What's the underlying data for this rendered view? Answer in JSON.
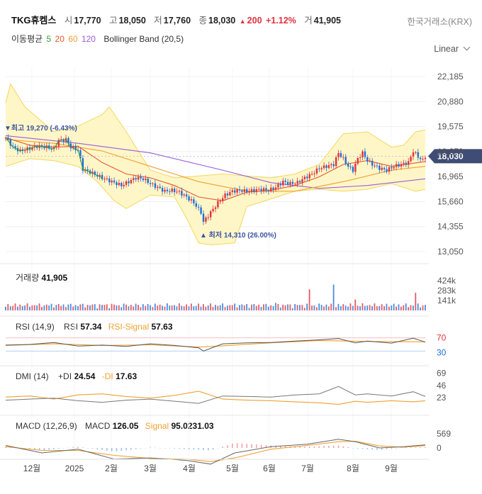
{
  "header": {
    "name": "TKG휴켐스",
    "open_label": "시",
    "open": "17,770",
    "high_label": "고",
    "high": "18,050",
    "low_label": "저",
    "low": "17,760",
    "close_label": "종",
    "close": "18,030",
    "change_arrow": "▲",
    "change": "200",
    "change_pct": "+1.12%",
    "volume_label": "거",
    "volume": "41,905",
    "exchange": "한국거래소(KRX)",
    "scale_mode": "Linear",
    "ma_label": "이동평균",
    "ma5": "5",
    "ma20": "20",
    "ma60": "60",
    "ma120": "120",
    "bb_label": "Bollinger Band (20,5)"
  },
  "colors": {
    "up": "#e0323c",
    "down": "#1e6fd9",
    "ma5": "#2e9e3e",
    "ma20": "#e4572e",
    "ma60": "#f0a030",
    "ma120": "#9a5cd8",
    "bb_fill": "#fff6c8",
    "bb_line": "#f2d85a",
    "price_tag": "#3f4c73"
  },
  "chart_data": [
    {
      "type": "candlestick",
      "panel": "price",
      "ylim": [
        13050,
        22185
      ],
      "y_ticks": [
        "22,185",
        "20,880",
        "19,575",
        "18,270",
        "16,965",
        "15,660",
        "14,355",
        "13,050"
      ],
      "x_ticks": [
        "12월",
        "2025",
        "2월",
        "3월",
        "4월",
        "5월",
        "6월",
        "7월",
        "8월",
        "9월"
      ],
      "last_price": "18,030",
      "high_annotation": "최고 19,270 (-6.43%)",
      "low_annotation": "최저 14,310 (26.00%)",
      "close_series": [
        {
          "x": 0,
          "y": 19000
        },
        {
          "x": 3,
          "y": 18500
        },
        {
          "x": 6,
          "y": 18300
        },
        {
          "x": 9,
          "y": 18400
        },
        {
          "x": 13,
          "y": 18550
        },
        {
          "x": 17,
          "y": 18500
        },
        {
          "x": 20,
          "y": 18400
        },
        {
          "x": 22,
          "y": 18850
        },
        {
          "x": 25,
          "y": 18900
        },
        {
          "x": 27,
          "y": 18500
        },
        {
          "x": 30,
          "y": 18350
        },
        {
          "x": 32,
          "y": 17350
        },
        {
          "x": 35,
          "y": 17200
        },
        {
          "x": 40,
          "y": 16900
        },
        {
          "x": 45,
          "y": 16650
        },
        {
          "x": 48,
          "y": 16500
        },
        {
          "x": 51,
          "y": 16700
        },
        {
          "x": 54,
          "y": 16900
        },
        {
          "x": 57,
          "y": 16850
        },
        {
          "x": 60,
          "y": 16600
        },
        {
          "x": 63,
          "y": 16400
        },
        {
          "x": 66,
          "y": 16200
        },
        {
          "x": 69,
          "y": 16250
        },
        {
          "x": 72,
          "y": 16150
        },
        {
          "x": 75,
          "y": 15900
        },
        {
          "x": 78,
          "y": 15600
        },
        {
          "x": 81,
          "y": 15100
        },
        {
          "x": 82,
          "y": 14600
        },
        {
          "x": 85,
          "y": 15100
        },
        {
          "x": 88,
          "y": 15600
        },
        {
          "x": 91,
          "y": 16000
        },
        {
          "x": 94,
          "y": 16200
        },
        {
          "x": 97,
          "y": 16250
        },
        {
          "x": 100,
          "y": 16200
        },
        {
          "x": 103,
          "y": 16250
        },
        {
          "x": 106,
          "y": 16300
        },
        {
          "x": 109,
          "y": 16250
        },
        {
          "x": 112,
          "y": 16400
        },
        {
          "x": 115,
          "y": 16700
        },
        {
          "x": 118,
          "y": 16600
        },
        {
          "x": 121,
          "y": 16650
        },
        {
          "x": 124,
          "y": 16900
        },
        {
          "x": 127,
          "y": 17100
        },
        {
          "x": 130,
          "y": 17400
        },
        {
          "x": 133,
          "y": 17500
        },
        {
          "x": 136,
          "y": 17600
        },
        {
          "x": 138,
          "y": 18200
        },
        {
          "x": 140,
          "y": 17900
        },
        {
          "x": 142,
          "y": 17500
        },
        {
          "x": 144,
          "y": 17300
        },
        {
          "x": 146,
          "y": 17900
        },
        {
          "x": 148,
          "y": 18200
        },
        {
          "x": 150,
          "y": 17800
        },
        {
          "x": 152,
          "y": 17600
        },
        {
          "x": 155,
          "y": 17400
        },
        {
          "x": 158,
          "y": 17300
        },
        {
          "x": 161,
          "y": 17500
        },
        {
          "x": 164,
          "y": 17600
        },
        {
          "x": 167,
          "y": 17700
        },
        {
          "x": 169,
          "y": 18300
        },
        {
          "x": 171,
          "y": 18000
        },
        {
          "x": 173,
          "y": 17800
        },
        {
          "x": 174,
          "y": 18030
        }
      ],
      "ma20": [
        {
          "x": 0,
          "y": 19000
        },
        {
          "x": 10,
          "y": 18600
        },
        {
          "x": 20,
          "y": 18500
        },
        {
          "x": 30,
          "y": 18550
        },
        {
          "x": 40,
          "y": 17700
        },
        {
          "x": 50,
          "y": 17100
        },
        {
          "x": 60,
          "y": 16900
        },
        {
          "x": 70,
          "y": 16500
        },
        {
          "x": 80,
          "y": 15900
        },
        {
          "x": 90,
          "y": 15700
        },
        {
          "x": 100,
          "y": 16150
        },
        {
          "x": 110,
          "y": 16250
        },
        {
          "x": 120,
          "y": 16500
        },
        {
          "x": 130,
          "y": 16950
        },
        {
          "x": 140,
          "y": 17600
        },
        {
          "x": 150,
          "y": 17800
        },
        {
          "x": 160,
          "y": 17500
        },
        {
          "x": 174,
          "y": 17750
        }
      ],
      "ma60": [
        {
          "x": 0,
          "y": 18900
        },
        {
          "x": 20,
          "y": 18700
        },
        {
          "x": 40,
          "y": 18300
        },
        {
          "x": 60,
          "y": 17500
        },
        {
          "x": 80,
          "y": 16700
        },
        {
          "x": 100,
          "y": 16200
        },
        {
          "x": 120,
          "y": 16200
        },
        {
          "x": 140,
          "y": 16700
        },
        {
          "x": 160,
          "y": 17300
        },
        {
          "x": 174,
          "y": 17500
        }
      ],
      "ma120": [
        {
          "x": 0,
          "y": 19100
        },
        {
          "x": 30,
          "y": 18700
        },
        {
          "x": 60,
          "y": 18200
        },
        {
          "x": 90,
          "y": 17300
        },
        {
          "x": 110,
          "y": 16650
        },
        {
          "x": 130,
          "y": 16350
        },
        {
          "x": 150,
          "y": 16500
        },
        {
          "x": 174,
          "y": 16850
        }
      ],
      "bb_upper": [
        {
          "x": 0,
          "y": 20800
        },
        {
          "x": 2,
          "y": 21800
        },
        {
          "x": 8,
          "y": 20600
        },
        {
          "x": 20,
          "y": 19300
        },
        {
          "x": 30,
          "y": 19600
        },
        {
          "x": 40,
          "y": 20200
        },
        {
          "x": 43,
          "y": 20600
        },
        {
          "x": 50,
          "y": 19300
        },
        {
          "x": 60,
          "y": 17300
        },
        {
          "x": 70,
          "y": 16900
        },
        {
          "x": 80,
          "y": 17000
        },
        {
          "x": 90,
          "y": 17100
        },
        {
          "x": 100,
          "y": 17000
        },
        {
          "x": 110,
          "y": 16900
        },
        {
          "x": 120,
          "y": 17100
        },
        {
          "x": 130,
          "y": 17600
        },
        {
          "x": 140,
          "y": 19200
        },
        {
          "x": 150,
          "y": 19300
        },
        {
          "x": 160,
          "y": 18500
        },
        {
          "x": 165,
          "y": 18600
        },
        {
          "x": 170,
          "y": 19300
        },
        {
          "x": 174,
          "y": 19400
        }
      ],
      "bb_lower": [
        {
          "x": 0,
          "y": 17500
        },
        {
          "x": 10,
          "y": 17900
        },
        {
          "x": 20,
          "y": 17800
        },
        {
          "x": 30,
          "y": 17500
        },
        {
          "x": 38,
          "y": 16700
        },
        {
          "x": 45,
          "y": 15700
        },
        {
          "x": 50,
          "y": 15300
        },
        {
          "x": 60,
          "y": 16000
        },
        {
          "x": 70,
          "y": 15900
        },
        {
          "x": 75,
          "y": 14800
        },
        {
          "x": 80,
          "y": 13500
        },
        {
          "x": 85,
          "y": 13400
        },
        {
          "x": 95,
          "y": 13500
        },
        {
          "x": 100,
          "y": 15400
        },
        {
          "x": 110,
          "y": 15800
        },
        {
          "x": 120,
          "y": 16200
        },
        {
          "x": 130,
          "y": 16300
        },
        {
          "x": 140,
          "y": 16200
        },
        {
          "x": 150,
          "y": 16300
        },
        {
          "x": 160,
          "y": 16600
        },
        {
          "x": 170,
          "y": 16200
        },
        {
          "x": 174,
          "y": 16300
        }
      ]
    },
    {
      "type": "bar",
      "panel": "volume",
      "label": "거래량",
      "value": "41,905",
      "y_ticks": [
        "424k",
        "283k",
        "141k"
      ],
      "ylim": [
        0,
        500000
      ],
      "spikes": [
        {
          "x": 136,
          "y": 380000
        },
        {
          "x": 126,
          "y": 310000
        },
        {
          "x": 170,
          "y": 260000
        },
        {
          "x": 145,
          "y": 160000
        },
        {
          "x": 112,
          "y": 110000
        },
        {
          "x": 80,
          "y": 100000
        },
        {
          "x": 42,
          "y": 90000
        }
      ]
    },
    {
      "type": "line",
      "panel": "rsi",
      "label": "RSI (14,9)",
      "rsi_label": "RSI",
      "rsi_value": "57.34",
      "signal_label": "RSI-Signal",
      "signal_value": "57.63",
      "levels": [
        "70",
        "30"
      ],
      "ylim": [
        0,
        100
      ],
      "rsi": [
        {
          "x": 0,
          "y": 48
        },
        {
          "x": 10,
          "y": 50
        },
        {
          "x": 20,
          "y": 56
        },
        {
          "x": 30,
          "y": 45
        },
        {
          "x": 40,
          "y": 48
        },
        {
          "x": 50,
          "y": 44
        },
        {
          "x": 60,
          "y": 52
        },
        {
          "x": 70,
          "y": 47
        },
        {
          "x": 80,
          "y": 40
        },
        {
          "x": 82,
          "y": 30
        },
        {
          "x": 90,
          "y": 52
        },
        {
          "x": 100,
          "y": 55
        },
        {
          "x": 110,
          "y": 56
        },
        {
          "x": 120,
          "y": 60
        },
        {
          "x": 130,
          "y": 64
        },
        {
          "x": 138,
          "y": 68
        },
        {
          "x": 145,
          "y": 55
        },
        {
          "x": 150,
          "y": 60
        },
        {
          "x": 160,
          "y": 54
        },
        {
          "x": 169,
          "y": 69
        },
        {
          "x": 174,
          "y": 57
        }
      ],
      "signal": [
        {
          "x": 0,
          "y": 47
        },
        {
          "x": 20,
          "y": 52
        },
        {
          "x": 40,
          "y": 47
        },
        {
          "x": 60,
          "y": 49
        },
        {
          "x": 80,
          "y": 42
        },
        {
          "x": 90,
          "y": 46
        },
        {
          "x": 110,
          "y": 55
        },
        {
          "x": 130,
          "y": 62
        },
        {
          "x": 150,
          "y": 59
        },
        {
          "x": 174,
          "y": 58
        }
      ]
    },
    {
      "type": "line",
      "panel": "dmi",
      "label": "DMI (14)",
      "pdi_label": "+DI",
      "pdi_value": "24.54",
      "mdi_label": "-DI",
      "mdi_value": "17.63",
      "y_ticks": [
        "69",
        "46",
        "23"
      ],
      "ylim": [
        0,
        70
      ],
      "pdi": [
        {
          "x": 0,
          "y": 18
        },
        {
          "x": 10,
          "y": 20
        },
        {
          "x": 20,
          "y": 22
        },
        {
          "x": 30,
          "y": 17
        },
        {
          "x": 40,
          "y": 14
        },
        {
          "x": 50,
          "y": 18
        },
        {
          "x": 60,
          "y": 20
        },
        {
          "x": 70,
          "y": 16
        },
        {
          "x": 80,
          "y": 12
        },
        {
          "x": 90,
          "y": 26
        },
        {
          "x": 100,
          "y": 25
        },
        {
          "x": 110,
          "y": 24
        },
        {
          "x": 120,
          "y": 28
        },
        {
          "x": 130,
          "y": 30
        },
        {
          "x": 138,
          "y": 44
        },
        {
          "x": 145,
          "y": 28
        },
        {
          "x": 150,
          "y": 30
        },
        {
          "x": 160,
          "y": 26
        },
        {
          "x": 169,
          "y": 34
        },
        {
          "x": 174,
          "y": 25
        }
      ],
      "mdi": [
        {
          "x": 0,
          "y": 24
        },
        {
          "x": 10,
          "y": 26
        },
        {
          "x": 20,
          "y": 20
        },
        {
          "x": 30,
          "y": 28
        },
        {
          "x": 40,
          "y": 30
        },
        {
          "x": 50,
          "y": 25
        },
        {
          "x": 60,
          "y": 22
        },
        {
          "x": 70,
          "y": 27
        },
        {
          "x": 80,
          "y": 35
        },
        {
          "x": 90,
          "y": 20
        },
        {
          "x": 100,
          "y": 18
        },
        {
          "x": 110,
          "y": 17
        },
        {
          "x": 120,
          "y": 15
        },
        {
          "x": 130,
          "y": 13
        },
        {
          "x": 138,
          "y": 10
        },
        {
          "x": 145,
          "y": 16
        },
        {
          "x": 150,
          "y": 14
        },
        {
          "x": 160,
          "y": 17
        },
        {
          "x": 169,
          "y": 15
        },
        {
          "x": 174,
          "y": 17
        }
      ]
    },
    {
      "type": "line",
      "panel": "macd",
      "label": "MACD (12,26,9)",
      "macd_label": "MACD",
      "macd_value": "126.05",
      "signal_label": "Signal",
      "signal_value": "95.0231.03",
      "y_ticks": [
        "569",
        "0"
      ],
      "ylim": [
        -700,
        800
      ],
      "macd": [
        {
          "x": 0,
          "y": 100
        },
        {
          "x": 15,
          "y": -200
        },
        {
          "x": 30,
          "y": -50
        },
        {
          "x": 45,
          "y": -450
        },
        {
          "x": 60,
          "y": -400
        },
        {
          "x": 75,
          "y": -500
        },
        {
          "x": 85,
          "y": -650
        },
        {
          "x": 95,
          "y": -200
        },
        {
          "x": 110,
          "y": 50
        },
        {
          "x": 125,
          "y": 150
        },
        {
          "x": 138,
          "y": 350
        },
        {
          "x": 145,
          "y": 250
        },
        {
          "x": 155,
          "y": 0
        },
        {
          "x": 165,
          "y": 50
        },
        {
          "x": 174,
          "y": 126
        }
      ],
      "signal": [
        {
          "x": 0,
          "y": 50
        },
        {
          "x": 15,
          "y": -100
        },
        {
          "x": 30,
          "y": -100
        },
        {
          "x": 45,
          "y": -300
        },
        {
          "x": 60,
          "y": -420
        },
        {
          "x": 75,
          "y": -450
        },
        {
          "x": 85,
          "y": -550
        },
        {
          "x": 95,
          "y": -400
        },
        {
          "x": 110,
          "y": -50
        },
        {
          "x": 125,
          "y": 100
        },
        {
          "x": 138,
          "y": 250
        },
        {
          "x": 145,
          "y": 270
        },
        {
          "x": 155,
          "y": 80
        },
        {
          "x": 165,
          "y": 30
        },
        {
          "x": 174,
          "y": 95
        }
      ]
    }
  ]
}
